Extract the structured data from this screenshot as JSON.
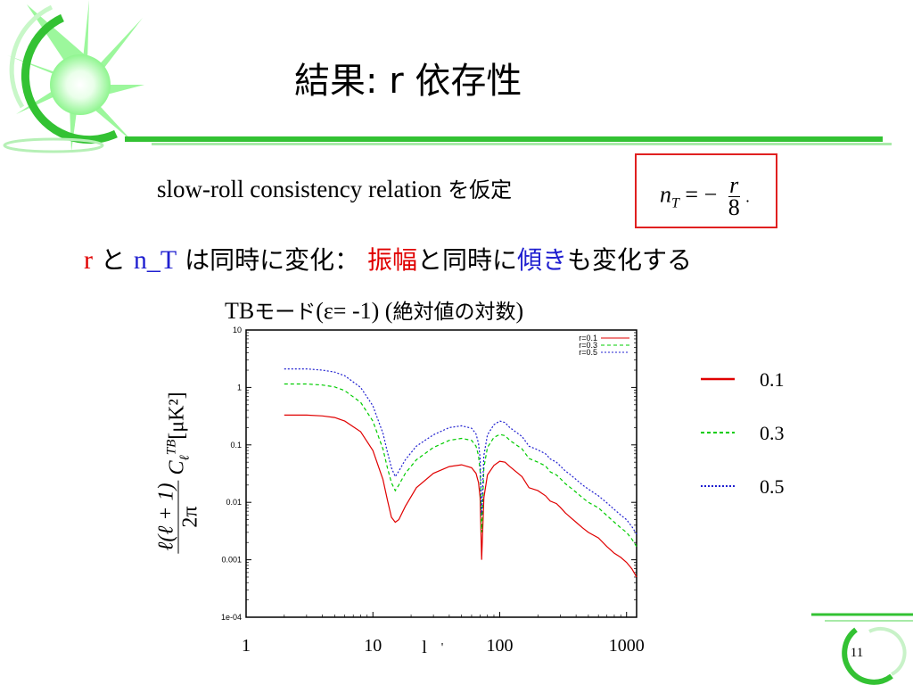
{
  "slide": {
    "title": "結果: r 依存性",
    "assumption": {
      "text_en": "slow-roll consistency relation",
      "text_jp": "を仮定"
    },
    "formula": {
      "lhs": "n",
      "lhs_sub": "T",
      "equals": "= −",
      "num": "r",
      "den": "8",
      "trail": "."
    },
    "line2": {
      "r": "r",
      "to": "と",
      "nT": "n_T",
      "mid": "は同時に変化：",
      "amp": "振幅",
      "mid2": "と同時に",
      "tilt": "傾き",
      "tail": "も変化する"
    },
    "chart_title": {
      "en1": "TB",
      "jp1": "モード",
      "en2": "(ε= -1) (",
      "jp2": "絶対値の対数",
      "en3": ")"
    },
    "page_number": "11"
  },
  "colors": {
    "accent_green": "#3cc83c",
    "red": "#e00000",
    "green": "#00cc00",
    "blue": "#2020d0",
    "box_red": "#e02020"
  },
  "chart_data": {
    "type": "line",
    "xlabel": "l",
    "ylabel": "ℓ(ℓ+1)/2π C_ℓ^TB [μK²]",
    "x_scale": "log",
    "y_scale": "log",
    "xlim": [
      1,
      1200
    ],
    "ylim": [
      0.0001,
      10
    ],
    "x_ticks": [
      "1",
      "10",
      "100",
      "1000"
    ],
    "x_tick_values": [
      1,
      10,
      100,
      1000
    ],
    "y_ticks": [
      "10",
      "1",
      "0.1",
      "0.01",
      "0.001",
      "1e-04"
    ],
    "y_tick_values": [
      10,
      1,
      0.1,
      0.01,
      0.001,
      0.0001
    ],
    "legend_inside": [
      "r=0.1",
      "r=0.3",
      "r=0.5"
    ],
    "legend_outside": [
      "0.1",
      "0.3",
      "0.5"
    ],
    "series": [
      {
        "name": "r=0.1",
        "color": "#e00000",
        "dash": "solid",
        "x": [
          2,
          3,
          4,
          5,
          6,
          8,
          10,
          12,
          13,
          14,
          15,
          16,
          18,
          22,
          30,
          40,
          50,
          60,
          65,
          68,
          70,
          72,
          75,
          80,
          90,
          100,
          110,
          120,
          150,
          170,
          200,
          230,
          250,
          280,
          300,
          330,
          350,
          400,
          450,
          500,
          600,
          700,
          800,
          900,
          1000,
          1100,
          1200
        ],
        "y": [
          0.33,
          0.33,
          0.32,
          0.3,
          0.26,
          0.17,
          0.08,
          0.025,
          0.011,
          0.0055,
          0.0045,
          0.005,
          0.0085,
          0.018,
          0.032,
          0.042,
          0.045,
          0.04,
          0.032,
          0.022,
          0.012,
          0.001,
          0.012,
          0.03,
          0.044,
          0.052,
          0.05,
          0.042,
          0.028,
          0.018,
          0.016,
          0.013,
          0.0105,
          0.0095,
          0.0082,
          0.0065,
          0.0058,
          0.0045,
          0.0036,
          0.003,
          0.0024,
          0.0017,
          0.0013,
          0.0011,
          0.0009,
          0.0007,
          0.0005
        ]
      },
      {
        "name": "r=0.3",
        "color": "#00cc00",
        "dash": "4,3",
        "x": [
          2,
          3,
          4,
          5,
          6,
          8,
          10,
          12,
          13,
          14,
          15,
          16,
          18,
          22,
          30,
          40,
          50,
          60,
          65,
          68,
          70,
          72,
          75,
          80,
          90,
          100,
          110,
          120,
          150,
          170,
          200,
          230,
          250,
          280,
          300,
          330,
          350,
          400,
          450,
          500,
          600,
          700,
          800,
          900,
          1000,
          1100,
          1200
        ],
        "y": [
          1.15,
          1.15,
          1.1,
          1.02,
          0.88,
          0.55,
          0.26,
          0.085,
          0.04,
          0.022,
          0.016,
          0.02,
          0.032,
          0.055,
          0.09,
          0.12,
          0.13,
          0.12,
          0.095,
          0.065,
          0.035,
          0.003,
          0.04,
          0.09,
          0.135,
          0.152,
          0.145,
          0.12,
          0.085,
          0.058,
          0.05,
          0.043,
          0.034,
          0.03,
          0.026,
          0.021,
          0.019,
          0.015,
          0.012,
          0.01,
          0.008,
          0.0059,
          0.0045,
          0.0036,
          0.003,
          0.0023,
          0.0017
        ]
      },
      {
        "name": "r=0.5",
        "color": "#2020d0",
        "dash": "2,2",
        "x": [
          2,
          3,
          4,
          5,
          6,
          8,
          10,
          12,
          13,
          14,
          15,
          16,
          18,
          22,
          30,
          40,
          50,
          60,
          65,
          68,
          70,
          72,
          75,
          80,
          90,
          100,
          110,
          120,
          150,
          170,
          200,
          230,
          250,
          280,
          300,
          330,
          350,
          400,
          450,
          500,
          600,
          700,
          800,
          900,
          1000,
          1100,
          1200
        ],
        "y": [
          2.1,
          2.1,
          2.0,
          1.85,
          1.6,
          1.0,
          0.48,
          0.16,
          0.075,
          0.04,
          0.028,
          0.035,
          0.055,
          0.095,
          0.15,
          0.2,
          0.215,
          0.195,
          0.155,
          0.105,
          0.058,
          0.006,
          0.065,
          0.15,
          0.225,
          0.26,
          0.245,
          0.2,
          0.14,
          0.095,
          0.082,
          0.07,
          0.057,
          0.05,
          0.043,
          0.035,
          0.032,
          0.025,
          0.02,
          0.017,
          0.013,
          0.0098,
          0.0075,
          0.006,
          0.005,
          0.0038,
          0.0028
        ]
      }
    ]
  }
}
